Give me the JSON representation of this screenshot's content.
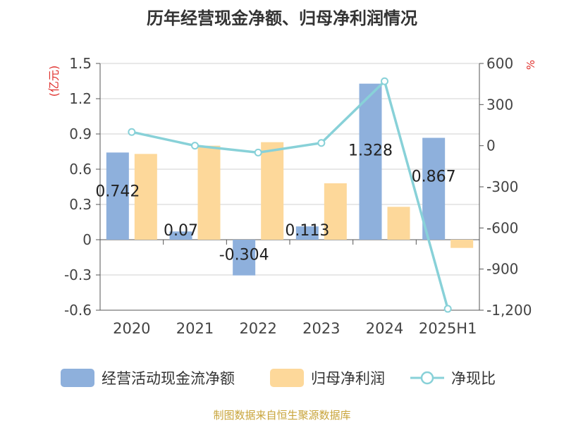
{
  "chart_data": {
    "type": "bar+line",
    "title": "历年经营现金净额、归母净利润情况",
    "categories": [
      "2020",
      "2021",
      "2022",
      "2023",
      "2024",
      "2025H1"
    ],
    "left_axis": {
      "unit": "(亿元)",
      "ticks": [
        "1.5",
        "1.2",
        "0.9",
        "0.6",
        "0.3",
        "0",
        "-0.3",
        "-0.6"
      ],
      "ylim": [
        -0.6,
        1.5
      ]
    },
    "right_axis": {
      "unit": "%",
      "ticks": [
        "600",
        "300",
        "0",
        "-300",
        "-600",
        "-900",
        "-1,200"
      ],
      "ylim": [
        -1200,
        600
      ]
    },
    "series": [
      {
        "name": "经营活动现金流净额",
        "kind": "bar",
        "axis": "left",
        "color": "#8eb0dc",
        "values": [
          0.742,
          0.07,
          -0.304,
          0.113,
          1.328,
          0.867
        ],
        "labels": [
          "0.742",
          "0.07",
          "-0.304",
          "0.113",
          "1.328",
          "0.867"
        ]
      },
      {
        "name": "归母净利润",
        "kind": "bar",
        "axis": "left",
        "color": "#fdd89a",
        "values": [
          0.73,
          0.8,
          0.83,
          0.48,
          0.28,
          -0.07
        ]
      },
      {
        "name": "净现比",
        "kind": "line",
        "axis": "right",
        "color": "#88d1d8",
        "values": [
          100,
          0,
          -50,
          20,
          470,
          -1190
        ]
      }
    ],
    "grid": true,
    "legend_position": "bottom"
  },
  "source": "制图数据来自恒生聚源数据库"
}
